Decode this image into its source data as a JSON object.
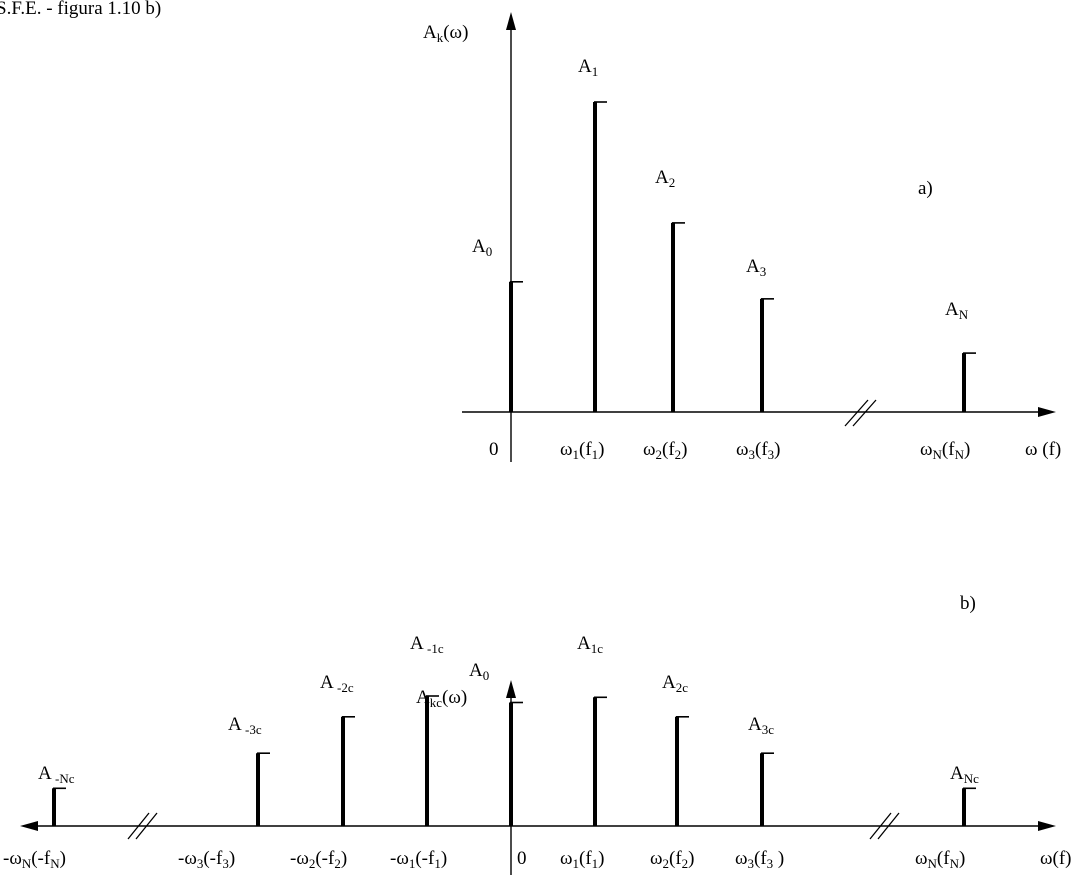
{
  "caption": "S.F.E. - figura 1.10 b)",
  "top": {
    "tag": "a)",
    "yaxis": {
      "base": "A",
      "sub": "k",
      "tail": "(ω)"
    },
    "origin": "0",
    "xaxis": "ω  (f)",
    "bars": [
      {
        "label": {
          "base": "A",
          "sub": "0"
        },
        "tick": null,
        "amp": 0.42
      },
      {
        "label": {
          "base": "A",
          "sub": "1"
        },
        "tick": {
          "a": "ω",
          "as": "1",
          "b": "(f",
          "bs": "1",
          "c": ")"
        },
        "amp": 1.0
      },
      {
        "label": {
          "base": "A",
          "sub": "2"
        },
        "tick": {
          "a": "ω",
          "as": "2",
          "b": "(f",
          "bs": "2",
          "c": ")"
        },
        "amp": 0.61
      },
      {
        "label": {
          "base": "A",
          "sub": "3"
        },
        "tick": {
          "a": "ω",
          "as": "3",
          "b": "(f",
          "bs": "3",
          "c": ")"
        },
        "amp": 0.365
      },
      {
        "label": {
          "base": "A",
          "sub": "N"
        },
        "tick": {
          "a": "ω",
          "as": "N",
          "b": "(f",
          "bs": "N",
          "c": ")"
        },
        "amp": 0.19
      }
    ]
  },
  "bottom": {
    "tag": "b)",
    "yaxis": {
      "base": "A",
      "sub": "kc",
      "tail": "(ω)"
    },
    "origin": "0",
    "xaxis": "ω(f)",
    "bars": [
      {
        "label": {
          "base": "A",
          "sub": " -Nc"
        },
        "tick": {
          "a": "-ω",
          "as": "N",
          "b": "(-f",
          "bs": "N",
          "c": ")"
        },
        "amp": 0.29
      },
      {
        "label": {
          "base": "A",
          "sub": " -3c"
        },
        "tick": {
          "a": "-ω",
          "as": "3",
          "b": "(-f",
          "bs": "3",
          "c": ")"
        },
        "amp": 0.56
      },
      {
        "label": {
          "base": "A",
          "sub": " -2c"
        },
        "tick": {
          "a": "-ω",
          "as": "2",
          "b": "(-f",
          "bs": "2",
          "c": ")"
        },
        "amp": 0.84
      },
      {
        "label": {
          "base": "A",
          "sub": " -1c"
        },
        "tick": {
          "a": "-ω",
          "as": "1",
          "b": "(-f",
          "bs": "1",
          "c": ")"
        },
        "amp": 1.0
      },
      {
        "label": {
          "base": "A",
          "sub": "0"
        },
        "tick": null,
        "amp": 0.95
      },
      {
        "label": {
          "base": "A",
          "sub": "1c"
        },
        "tick": {
          "a": "ω",
          "as": "1",
          "b": "(f",
          "bs": "1",
          "c": ")"
        },
        "amp": 0.99
      },
      {
        "label": {
          "base": "A",
          "sub": "2c"
        },
        "tick": {
          "a": "ω",
          "as": "2",
          "b": "(f",
          "bs": "2",
          "c": ")"
        },
        "amp": 0.84
      },
      {
        "label": {
          "base": "A",
          "sub": "3c"
        },
        "tick": {
          "a": "ω",
          "as": "3",
          "b": "(f",
          "bs": "3",
          "c": "  )"
        },
        "amp": 0.56
      },
      {
        "label": {
          "base": "A",
          "sub": "Nc"
        },
        "tick": {
          "a": "ω",
          "as": "N",
          "b": "(f",
          "bs": "N",
          "c": ")"
        },
        "amp": 0.29
      }
    ]
  }
}
